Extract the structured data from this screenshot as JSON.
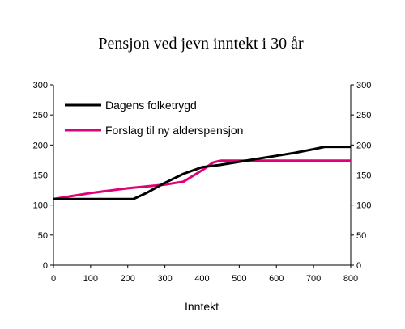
{
  "chart_data": {
    "type": "line",
    "title": "Pensjon ved jevn inntekt i 30 år",
    "xlabel": "Inntekt",
    "ylabel": "",
    "xlim": [
      0,
      800
    ],
    "ylim": [
      0,
      300
    ],
    "x_ticks": [
      0,
      100,
      200,
      300,
      400,
      500,
      600,
      700,
      800
    ],
    "y_ticks": [
      0,
      50,
      100,
      150,
      200,
      250,
      300
    ],
    "grid": false,
    "legend_position": "top-left",
    "series": [
      {
        "name": "Dagens folketrygd",
        "color": "#000000",
        "x": [
          0,
          50,
          100,
          150,
          200,
          215,
          250,
          300,
          350,
          400,
          450,
          500,
          550,
          600,
          650,
          700,
          730,
          750,
          800
        ],
        "values": [
          110,
          110,
          110,
          110,
          110,
          110,
          120,
          137,
          152,
          163,
          167,
          172,
          177,
          182,
          187,
          193,
          197,
          197,
          197
        ]
      },
      {
        "name": "Forslag til ny alderspensjon",
        "color": "#e0007a",
        "x": [
          0,
          50,
          100,
          150,
          200,
          250,
          300,
          350,
          400,
          430,
          450,
          500,
          550,
          600,
          650,
          700,
          750,
          800
        ],
        "values": [
          110,
          115,
          120,
          124,
          128,
          131,
          134,
          139,
          158,
          171,
          174,
          174,
          174,
          174,
          174,
          174,
          174,
          174
        ]
      }
    ]
  }
}
